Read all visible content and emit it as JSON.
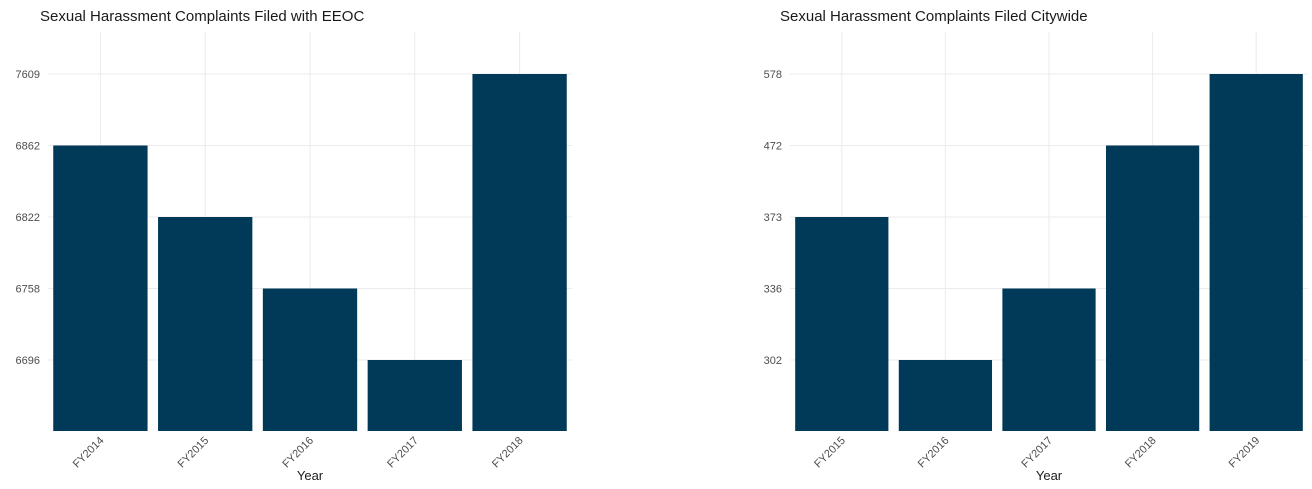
{
  "chart_data": [
    {
      "type": "bar",
      "title": "Sexual Harassment Complaints Filed with EEOC",
      "xlabel": "Year",
      "ylabel": "",
      "categories": [
        "FY2014",
        "FY2015",
        "FY2016",
        "FY2017",
        "FY2018"
      ],
      "values": [
        6862,
        6822,
        6758,
        6696,
        7609
      ],
      "y_tick_labels": [
        "6696",
        "6758",
        "6822",
        "6862",
        "7609"
      ],
      "bar_color": "#003a58",
      "grid": true,
      "legend": "none"
    },
    {
      "type": "bar",
      "title": "Sexual Harassment Complaints Filed Citywide",
      "xlabel": "Year",
      "ylabel": "",
      "categories": [
        "FY2015",
        "FY2016",
        "FY2017",
        "FY2018",
        "FY2019"
      ],
      "values": [
        373,
        302,
        336,
        472,
        578
      ],
      "y_tick_labels": [
        "302",
        "336",
        "373",
        "472",
        "578"
      ],
      "bar_color": "#003a58",
      "grid": true,
      "legend": "none"
    }
  ]
}
